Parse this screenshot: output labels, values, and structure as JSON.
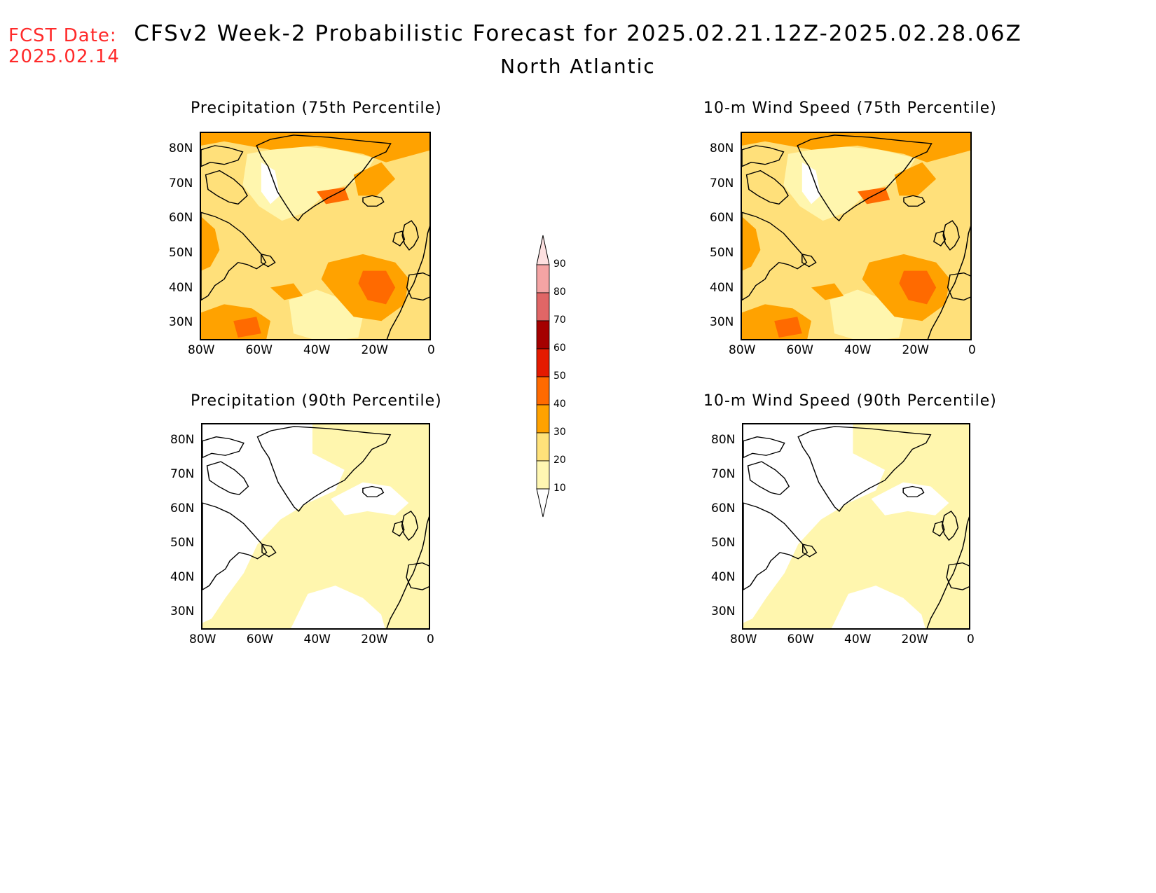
{
  "header": {
    "fcst_label": "FCST Date:",
    "fcst_date": "2025.02.14",
    "title": "CFSv2 Week-2 Probabilistic Forecast for 2025.02.21.12Z-2025.02.28.06Z",
    "subtitle": "North Atlantic"
  },
  "axes": {
    "lat_labels": [
      "80N",
      "70N",
      "60N",
      "50N",
      "40N",
      "30N"
    ],
    "lon_labels": [
      "80W",
      "60W",
      "40W",
      "20W",
      "0"
    ]
  },
  "panels": [
    {
      "id": "precip-75",
      "title": "Precipitation (75th Percentile)",
      "level": "high"
    },
    {
      "id": "wind-75",
      "title": "10-m Wind Speed (75th Percentile)",
      "level": "high"
    },
    {
      "id": "precip-90",
      "title": "Precipitation (90th Percentile)",
      "level": "low"
    },
    {
      "id": "wind-90",
      "title": "10-m Wind Speed (90th Percentile)",
      "level": "low"
    }
  ],
  "colorbar": {
    "labels": [
      "90",
      "80",
      "70",
      "60",
      "50",
      "40",
      "30",
      "20",
      "10"
    ],
    "colors": [
      "#fde0e0",
      "#f4a4a4",
      "#e06666",
      "#a50000",
      "#e41a00",
      "#ff6a00",
      "#ffa200",
      "#ffe27a",
      "#fff7b2"
    ]
  },
  "palette": {
    "light": "#fff6ae",
    "mid": "#ffe07a",
    "orange": "#ffa200",
    "darkorange": "#ff6a00",
    "red": "#e41a00",
    "coast": "#000000"
  }
}
